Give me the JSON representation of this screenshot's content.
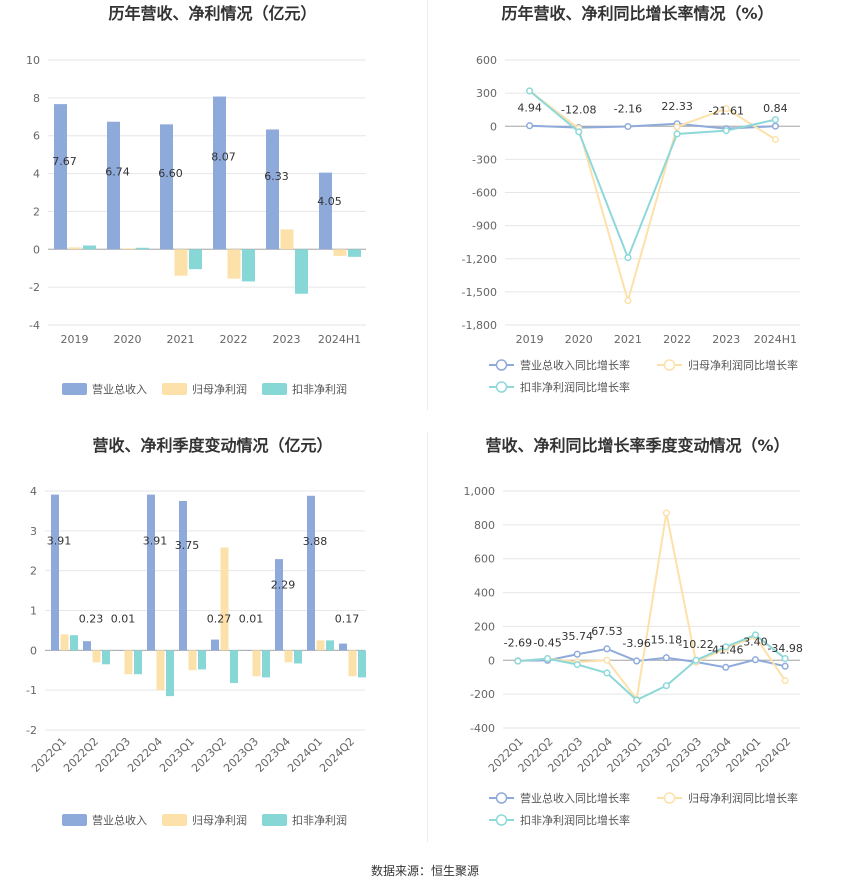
{
  "colors": {
    "revenue": "#8eaadb",
    "net_profit": "#fde1aa",
    "deducted_profit": "#88d7d7",
    "rev_line": "#8eaadb",
    "net_line": "#fde1aa",
    "ded_line": "#8ed8da"
  },
  "source_text": "数据来源：恒生聚源",
  "chart_data": [
    {
      "type": "bar",
      "title": "历年营收、净利情况（亿元）",
      "categories": [
        "2019",
        "2020",
        "2021",
        "2022",
        "2023",
        "2024H1"
      ],
      "ylim": [
        -4,
        10
      ],
      "yticks": [
        "-4",
        "-2",
        "0",
        "2",
        "4",
        "6",
        "8",
        "10"
      ],
      "series": [
        {
          "name": "营业总收入",
          "values": [
            7.67,
            6.74,
            6.6,
            8.07,
            6.33,
            4.05
          ],
          "labels": [
            "7.67",
            "6.74",
            "6.60",
            "8.07",
            "6.33",
            "4.05"
          ]
        },
        {
          "name": "归母净利润",
          "values": [
            0.1,
            0.05,
            -1.4,
            -1.55,
            1.05,
            -0.35
          ]
        },
        {
          "name": "扣非净利润",
          "values": [
            0.2,
            0.08,
            -1.05,
            -1.7,
            -2.35,
            -0.4
          ]
        }
      ],
      "legend_position": "bottom",
      "grid": true
    },
    {
      "type": "line",
      "title": "历年营收、净利同比增长率情况（%）",
      "categories": [
        "2019",
        "2020",
        "2021",
        "2022",
        "2023",
        "2024H1"
      ],
      "ylim": [
        -1800,
        600
      ],
      "yticks": [
        "-1,800",
        "-1,500",
        "-1,200",
        "-900",
        "-600",
        "-300",
        "0",
        "300",
        "600"
      ],
      "series": [
        {
          "name": "营业总收入同比增长率",
          "values": [
            4.94,
            -12.08,
            -2.16,
            22.33,
            -21.61,
            0.84
          ],
          "labels": [
            "4.94",
            "-12.08",
            "-2.16",
            "22.33",
            "-21.61",
            "0.84"
          ]
        },
        {
          "name": "归母净利润同比增长率",
          "values": [
            320,
            -20,
            -1580,
            -5,
            160,
            -120
          ]
        },
        {
          "name": "扣非净利润同比增长率",
          "values": [
            320,
            -50,
            -1190,
            -70,
            -40,
            60
          ]
        }
      ],
      "legend_position": "bottom",
      "grid": true
    },
    {
      "type": "bar",
      "title": "营收、净利季度变动情况（亿元）",
      "categories": [
        "2022Q1",
        "2022Q2",
        "2022Q3",
        "2022Q4",
        "2023Q1",
        "2023Q2",
        "2023Q3",
        "2023Q4",
        "2024Q1",
        "2024Q2"
      ],
      "ylim": [
        -2,
        4
      ],
      "yticks": [
        "-2",
        "-1",
        "0",
        "1",
        "2",
        "3",
        "4"
      ],
      "series": [
        {
          "name": "营业总收入",
          "values": [
            3.91,
            0.23,
            0.01,
            3.91,
            3.75,
            0.27,
            0.01,
            2.29,
            3.88,
            0.17
          ],
          "labels": [
            "3.91",
            "0.23",
            "0.01",
            "3.91",
            "3.75",
            "0.27",
            "0.01",
            "2.29",
            "3.88",
            "0.17"
          ]
        },
        {
          "name": "归母净利润",
          "values": [
            0.4,
            -0.3,
            -0.6,
            -1.0,
            -0.5,
            2.58,
            -0.65,
            -0.3,
            0.25,
            -0.65
          ]
        },
        {
          "name": "扣非净利润",
          "values": [
            0.38,
            -0.35,
            -0.6,
            -1.15,
            -0.48,
            -0.82,
            -0.68,
            -0.33,
            0.25,
            -0.68
          ]
        }
      ],
      "legend_position": "bottom",
      "grid": true
    },
    {
      "type": "line",
      "title": "营收、净利同比增长率季度变动情况（%）",
      "categories": [
        "2022Q1",
        "2022Q2",
        "2022Q3",
        "2022Q4",
        "2023Q1",
        "2023Q2",
        "2023Q3",
        "2023Q4",
        "2024Q1",
        "2024Q2"
      ],
      "ylim": [
        -400,
        1000
      ],
      "yticks": [
        "-400",
        "-200",
        "0",
        "200",
        "400",
        "600",
        "800",
        "1,000"
      ],
      "series": [
        {
          "name": "营业总收入同比增长率",
          "values": [
            -2.69,
            -0.45,
            35.74,
            67.53,
            -3.96,
            15.18,
            -10.22,
            -41.46,
            3.4,
            -34.98
          ],
          "labels": [
            "-2.69",
            "-0.45",
            "35.74",
            "67.53",
            "-3.96",
            "15.18",
            "-10.22",
            "-41.46",
            "3.40",
            "-34.98"
          ]
        },
        {
          "name": "归母净利润同比增长率",
          "values": [
            -5,
            10,
            -10,
            0,
            -230,
            870,
            -10,
            70,
            140,
            -120
          ]
        },
        {
          "name": "扣非净利润同比增长率",
          "values": [
            -5,
            10,
            -25,
            -75,
            -235,
            -150,
            0,
            80,
            150,
            10
          ]
        }
      ],
      "legend_position": "bottom",
      "grid": true
    }
  ]
}
